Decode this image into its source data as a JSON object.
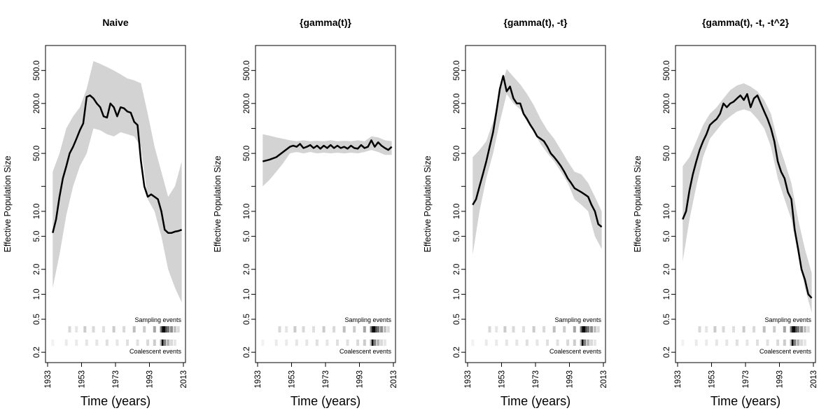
{
  "chart_data": [
    {
      "type": "line",
      "title": "Naive",
      "xlabel": "Time (years)",
      "ylabel": "Effective Population Size",
      "yscale": "log",
      "xlim": [
        1933,
        2013
      ],
      "ylim": [
        0.15,
        1000
      ],
      "x_ticks": [
        "1933",
        "1953",
        "1973",
        "1993",
        "2013"
      ],
      "y_ticks": [
        "0.2",
        "0.5",
        "1.0",
        "2.0",
        "5.0",
        "10.0",
        "50.0",
        "200.0",
        "500.0"
      ],
      "series": [
        {
          "name": "median",
          "x": [
            1936,
            1938,
            1940,
            1942,
            1944,
            1946,
            1948,
            1950,
            1952,
            1954,
            1956,
            1958,
            1960,
            1962,
            1964,
            1966,
            1968,
            1970,
            1972,
            1974,
            1976,
            1978,
            1980,
            1982,
            1984,
            1986,
            1988,
            1990,
            1992,
            1994,
            1996,
            1998,
            2000,
            2002,
            2004,
            2006,
            2008,
            2010,
            2012
          ],
          "y": [
            5.5,
            8,
            15,
            25,
            35,
            50,
            60,
            75,
            95,
            115,
            240,
            250,
            230,
            200,
            180,
            140,
            135,
            200,
            180,
            140,
            180,
            175,
            160,
            155,
            120,
            110,
            40,
            20,
            15,
            16,
            15,
            14,
            10,
            6,
            5.5,
            5.5,
            5.7,
            5.8,
            6
          ]
        },
        {
          "name": "lower",
          "x": [
            1936,
            1940,
            1944,
            1948,
            1952,
            1956,
            1960,
            1964,
            1968,
            1972,
            1976,
            1980,
            1984,
            1988,
            1992,
            1996,
            2000,
            2004,
            2008,
            2012
          ],
          "y": [
            1.2,
            3,
            9,
            20,
            35,
            50,
            100,
            95,
            85,
            80,
            90,
            85,
            80,
            60,
            14,
            10,
            5,
            2,
            1.2,
            0.8
          ]
        },
        {
          "name": "upper",
          "x": [
            1936,
            1940,
            1944,
            1948,
            1952,
            1956,
            1960,
            1964,
            1968,
            1972,
            1976,
            1980,
            1984,
            1988,
            1992,
            1996,
            2000,
            2004,
            2008,
            2012
          ],
          "y": [
            30,
            50,
            100,
            140,
            180,
            300,
            650,
            600,
            550,
            500,
            450,
            400,
            380,
            350,
            150,
            60,
            30,
            15,
            20,
            40
          ]
        }
      ],
      "sampling_label": "Sampling events",
      "coalescent_label": "Coalescent events"
    },
    {
      "type": "line",
      "title": "{gamma(t)}",
      "xlabel": "Time (years)",
      "ylabel": "Effective Population Size",
      "yscale": "log",
      "xlim": [
        1933,
        2013
      ],
      "ylim": [
        0.15,
        1000
      ],
      "x_ticks": [
        "1933",
        "1953",
        "1973",
        "1993",
        "2013"
      ],
      "y_ticks": [
        "0.2",
        "0.5",
        "1.0",
        "2.0",
        "5.0",
        "10.0",
        "50.0",
        "200.0",
        "500.0"
      ],
      "series": [
        {
          "name": "median",
          "x": [
            1936,
            1940,
            1944,
            1948,
            1952,
            1954,
            1956,
            1958,
            1960,
            1962,
            1964,
            1966,
            1968,
            1970,
            1972,
            1974,
            1976,
            1978,
            1980,
            1982,
            1984,
            1986,
            1988,
            1990,
            1992,
            1994,
            1996,
            1998,
            2000,
            2002,
            2004,
            2006,
            2008,
            2010,
            2012
          ],
          "y": [
            40,
            42,
            45,
            52,
            60,
            62,
            60,
            65,
            58,
            60,
            63,
            58,
            62,
            57,
            62,
            58,
            63,
            58,
            62,
            58,
            60,
            57,
            62,
            58,
            57,
            63,
            58,
            60,
            72,
            60,
            68,
            62,
            58,
            55,
            60
          ]
        },
        {
          "name": "lower",
          "x": [
            1936,
            1940,
            1944,
            1948,
            1952,
            1956,
            1960,
            1964,
            1968,
            1972,
            1976,
            1980,
            1984,
            1988,
            1992,
            1996,
            2000,
            2004,
            2008,
            2012
          ],
          "y": [
            20,
            24,
            30,
            38,
            50,
            52,
            50,
            52,
            50,
            51,
            50,
            51,
            50,
            51,
            50,
            52,
            55,
            52,
            48,
            48
          ]
        },
        {
          "name": "upper",
          "x": [
            1936,
            1940,
            1944,
            1948,
            1952,
            1956,
            1960,
            1964,
            1968,
            1972,
            1976,
            1980,
            1984,
            1988,
            1992,
            1996,
            2000,
            2004,
            2008,
            2012
          ],
          "y": [
            85,
            82,
            78,
            75,
            72,
            70,
            72,
            70,
            71,
            70,
            72,
            70,
            71,
            70,
            72,
            70,
            80,
            78,
            72,
            70
          ]
        }
      ],
      "sampling_label": "Sampling events",
      "coalescent_label": "Coalescent events"
    },
    {
      "type": "line",
      "title": "{gamma(t), -t}",
      "xlabel": "Time (years)",
      "ylabel": "Effective Population Size",
      "yscale": "log",
      "xlim": [
        1933,
        2013
      ],
      "ylim": [
        0.15,
        1000
      ],
      "x_ticks": [
        "1933",
        "1953",
        "1973",
        "1993",
        "2013"
      ],
      "y_ticks": [
        "0.2",
        "0.5",
        "1.0",
        "2.0",
        "5.0",
        "10.0",
        "50.0",
        "200.0",
        "500.0"
      ],
      "series": [
        {
          "name": "median",
          "x": [
            1936,
            1938,
            1940,
            1942,
            1944,
            1946,
            1948,
            1950,
            1952,
            1954,
            1956,
            1958,
            1960,
            1962,
            1964,
            1966,
            1968,
            1970,
            1972,
            1974,
            1976,
            1978,
            1980,
            1982,
            1984,
            1986,
            1988,
            1990,
            1992,
            1994,
            1996,
            1998,
            2000,
            2002,
            2004,
            2006,
            2008,
            2010,
            2012
          ],
          "y": [
            12,
            14,
            20,
            28,
            40,
            60,
            90,
            160,
            300,
            430,
            280,
            320,
            230,
            200,
            200,
            150,
            130,
            110,
            95,
            80,
            75,
            70,
            60,
            50,
            45,
            40,
            35,
            30,
            25,
            22,
            19,
            18,
            17,
            16,
            15,
            12,
            10,
            7,
            6.5
          ]
        },
        {
          "name": "lower",
          "x": [
            1936,
            1940,
            1944,
            1948,
            1952,
            1956,
            1960,
            1964,
            1968,
            1972,
            1976,
            1980,
            1984,
            1988,
            1992,
            1996,
            2000,
            2004,
            2008,
            2012
          ],
          "y": [
            3,
            10,
            25,
            50,
            120,
            260,
            200,
            170,
            120,
            90,
            65,
            50,
            40,
            30,
            22,
            14,
            12,
            10,
            5,
            3.5
          ]
        },
        {
          "name": "upper",
          "x": [
            1936,
            1940,
            1944,
            1948,
            1952,
            1956,
            1960,
            1964,
            1968,
            1972,
            1976,
            1980,
            1984,
            1988,
            1992,
            1996,
            2000,
            2004,
            2008,
            2012
          ],
          "y": [
            45,
            55,
            70,
            120,
            280,
            520,
            420,
            340,
            260,
            190,
            130,
            95,
            75,
            55,
            40,
            30,
            28,
            22,
            15,
            10
          ]
        }
      ],
      "sampling_label": "Sampling events",
      "coalescent_label": "Coalescent events"
    },
    {
      "type": "line",
      "title": "{gamma(t), -t, -t^2}",
      "xlabel": "Time (years)",
      "ylabel": "Effective Population Size",
      "yscale": "log",
      "xlim": [
        1933,
        2013
      ],
      "ylim": [
        0.15,
        1000
      ],
      "x_ticks": [
        "1933",
        "1953",
        "1973",
        "1993",
        "2013"
      ],
      "y_ticks": [
        "0.2",
        "0.5",
        "1.0",
        "2.0",
        "5.0",
        "10.0",
        "50.0",
        "200.0",
        "500.0"
      ],
      "series": [
        {
          "name": "median",
          "x": [
            1936,
            1938,
            1940,
            1942,
            1944,
            1946,
            1948,
            1950,
            1952,
            1954,
            1956,
            1958,
            1960,
            1962,
            1964,
            1966,
            1968,
            1970,
            1972,
            1974,
            1976,
            1978,
            1980,
            1982,
            1984,
            1986,
            1988,
            1990,
            1992,
            1994,
            1996,
            1998,
            2000,
            2002,
            2004,
            2006,
            2008,
            2010,
            2012
          ],
          "y": [
            8,
            10,
            18,
            28,
            40,
            55,
            70,
            85,
            110,
            120,
            130,
            150,
            200,
            180,
            200,
            210,
            230,
            250,
            220,
            260,
            180,
            230,
            250,
            200,
            160,
            130,
            100,
            70,
            40,
            30,
            25,
            17,
            14,
            6,
            3.5,
            2,
            1.5,
            1.0,
            0.9
          ]
        },
        {
          "name": "lower",
          "x": [
            1936,
            1940,
            1944,
            1948,
            1952,
            1956,
            1960,
            1964,
            1968,
            1972,
            1976,
            1980,
            1984,
            1988,
            1992,
            1996,
            2000,
            2004,
            2008,
            2012
          ],
          "y": [
            2.5,
            8,
            20,
            45,
            75,
            95,
            120,
            140,
            160,
            170,
            160,
            130,
            100,
            60,
            25,
            14,
            8,
            3,
            1.2,
            0.6
          ]
        },
        {
          "name": "upper",
          "x": [
            1936,
            1940,
            1944,
            1948,
            1952,
            1956,
            1960,
            1964,
            1968,
            1972,
            1976,
            1980,
            1984,
            1988,
            1992,
            1996,
            2000,
            2004,
            2008,
            2012
          ],
          "y": [
            35,
            45,
            70,
            110,
            150,
            180,
            230,
            290,
            330,
            350,
            320,
            280,
            220,
            150,
            70,
            40,
            22,
            8,
            3.5,
            1.8
          ]
        }
      ],
      "sampling_label": "Sampling events",
      "coalescent_label": "Coalescent events"
    }
  ],
  "event_strips": {
    "sampling": {
      "x": [
        1946,
        1950,
        1955,
        1960,
        1966,
        1972,
        1978,
        1984,
        1990,
        1996,
        2000,
        2001,
        2002,
        2003,
        2004,
        2006,
        2008,
        2010
      ],
      "intensity": [
        0.15,
        0.1,
        0.2,
        0.15,
        0.12,
        0.2,
        0.15,
        0.25,
        0.2,
        0.35,
        0.5,
        0.9,
        1.0,
        0.7,
        0.55,
        0.45,
        0.25,
        0.15
      ]
    },
    "coalescent": {
      "x": [
        1936,
        1944,
        1950,
        1956,
        1962,
        1968,
        1974,
        1980,
        1986,
        1992,
        1996,
        2000,
        2001,
        2002,
        2004,
        2006,
        2008
      ],
      "intensity": [
        0.05,
        0.08,
        0.08,
        0.1,
        0.1,
        0.12,
        0.1,
        0.12,
        0.12,
        0.15,
        0.2,
        0.3,
        0.95,
        0.5,
        0.3,
        0.15,
        0.1
      ]
    }
  },
  "colors": {
    "line": "#000000",
    "band": "#d3d3d3",
    "frame": "#000000"
  }
}
